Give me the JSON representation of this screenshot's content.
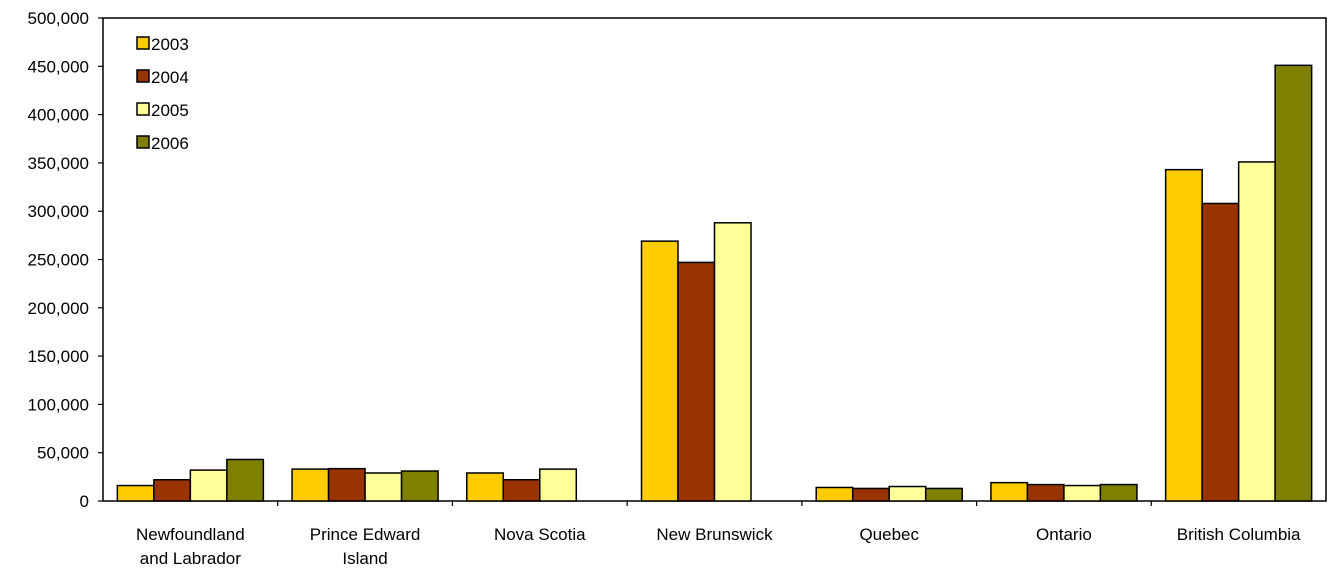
{
  "chart_data": {
    "type": "bar",
    "title": "",
    "xlabel": "",
    "ylabel": "",
    "ylim": [
      0,
      500000
    ],
    "ytick_step": 50000,
    "y_tick_labels": [
      "0",
      "50,000",
      "100,000",
      "150,000",
      "200,000",
      "250,000",
      "300,000",
      "350,000",
      "400,000",
      "450,000",
      "500,000"
    ],
    "grid": false,
    "legend_position": "top-left",
    "categories": [
      [
        "Newfoundland",
        "and Labrador"
      ],
      [
        "Prince Edward",
        "Island"
      ],
      [
        "Nova Scotia"
      ],
      [
        "New Brunswick"
      ],
      [
        "Quebec"
      ],
      [
        "Ontario"
      ],
      [
        "British Columbia"
      ]
    ],
    "series": [
      {
        "name": "2003",
        "color": "#ffcc00",
        "values": [
          16000,
          33000,
          29000,
          269000,
          14000,
          19000,
          343000
        ]
      },
      {
        "name": "2004",
        "color": "#993300",
        "values": [
          22000,
          33500,
          22000,
          247000,
          13000,
          17000,
          308000
        ]
      },
      {
        "name": "2005",
        "color": "#ffff99",
        "values": [
          32000,
          29000,
          33000,
          288000,
          15000,
          16000,
          351000
        ]
      },
      {
        "name": "2006",
        "color": "#808000",
        "values": [
          43000,
          31000,
          0,
          0,
          13000,
          17000,
          451000
        ]
      }
    ]
  }
}
